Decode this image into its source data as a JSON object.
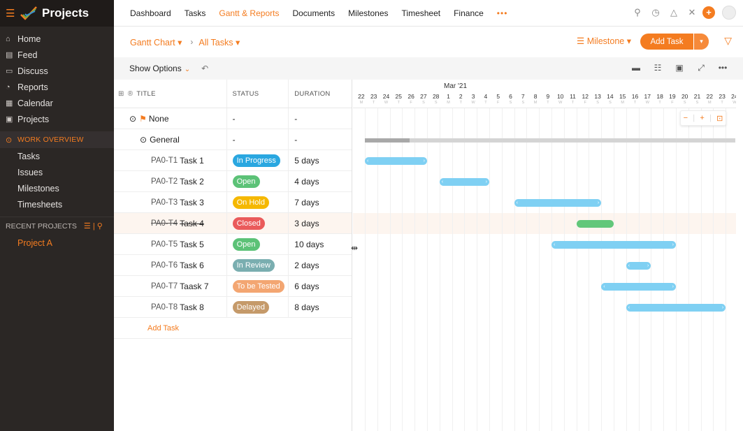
{
  "sidebar": {
    "brand": "Projects",
    "nav": [
      {
        "label": "Home",
        "icon": "home-icon"
      },
      {
        "label": "Feed",
        "icon": "feed-icon"
      },
      {
        "label": "Discuss",
        "icon": "discuss-icon"
      },
      {
        "label": "Reports",
        "icon": "reports-icon"
      },
      {
        "label": "Calendar",
        "icon": "calendar-icon"
      },
      {
        "label": "Projects",
        "icon": "projects-icon"
      }
    ],
    "work_overview": "WORK OVERVIEW",
    "work_items": [
      "Tasks",
      "Issues",
      "Milestones",
      "Timesheets"
    ],
    "recent_projects": "RECENT PROJECTS",
    "recent_items": [
      "Project A"
    ]
  },
  "topbar": {
    "tabs": [
      "Dashboard",
      "Tasks",
      "Gantt & Reports",
      "Documents",
      "Milestones",
      "Timesheet",
      "Finance"
    ],
    "active_tab": "Gantt & Reports",
    "more": "•••"
  },
  "subheader": {
    "view": "Gantt Chart",
    "filter": "All Tasks",
    "milestone": "Milestone",
    "add_task": "Add Task"
  },
  "toolbar": {
    "show_options": "Show Options"
  },
  "grid": {
    "columns": {
      "title": "TITLE",
      "status": "STATUS",
      "duration": "DURATION"
    },
    "groups": {
      "none": "None",
      "general": "General",
      "dash": "-"
    },
    "tasks": [
      {
        "id": "PA0-T1",
        "name": "Task 1",
        "status": "In Progress",
        "status_color": "#2aa7e0",
        "duration": "5 days"
      },
      {
        "id": "PA0-T2",
        "name": "Task 2",
        "status": "Open",
        "status_color": "#5cc277",
        "duration": "4 days"
      },
      {
        "id": "PA0-T3",
        "name": "Task 3",
        "status": "On Hold",
        "status_color": "#f5b800",
        "duration": "7 days"
      },
      {
        "id": "PA0-T4",
        "name": "Task 4",
        "status": "Closed",
        "status_color": "#ea5b5b",
        "duration": "3 days",
        "closed": true
      },
      {
        "id": "PA0-T5",
        "name": "Task 5",
        "status": "Open",
        "status_color": "#5cc277",
        "duration": "10 days"
      },
      {
        "id": "PA0-T6",
        "name": "Task 6",
        "status": "In Review",
        "status_color": "#7aaeb0",
        "duration": "2 days"
      },
      {
        "id": "PA0-T7",
        "name": "Taask 7",
        "status": "To be Tested",
        "status_color": "#f3a672",
        "duration": "6 days"
      },
      {
        "id": "PA0-T8",
        "name": "Task 8",
        "status": "Delayed",
        "status_color": "#c59a6a",
        "duration": "8 days"
      }
    ],
    "add_task": "Add Task"
  },
  "gantt": {
    "month": "Mar '21",
    "days": [
      "22",
      "23",
      "24",
      "25",
      "26",
      "27",
      "28",
      "1",
      "2",
      "3",
      "4",
      "5",
      "6",
      "7",
      "8",
      "9",
      "10",
      "11",
      "12",
      "13",
      "14",
      "15",
      "16",
      "17",
      "18",
      "19",
      "20",
      "21",
      "22",
      "23",
      "24"
    ],
    "weekdays": [
      "M",
      "T",
      "W",
      "T",
      "F",
      "S",
      "S",
      "M",
      "T",
      "W",
      "T",
      "F",
      "S",
      "S",
      "M",
      "T",
      "W",
      "T",
      "F",
      "S",
      "S",
      "M",
      "T",
      "W",
      "T",
      "F",
      "S",
      "S",
      "M",
      "T",
      "W"
    ],
    "group_span": {
      "start": 1,
      "end": 30,
      "progress": 0.12
    },
    "bars": [
      {
        "start": 1,
        "days": 5,
        "color": "#7fd0f3"
      },
      {
        "start": 7,
        "days": 4,
        "color": "#7fd0f3"
      },
      {
        "start": 13,
        "days": 7,
        "color": "#7fd0f3"
      },
      {
        "start": 18,
        "days": 3,
        "color": "#62c77a"
      },
      {
        "start": 16,
        "days": 10,
        "color": "#7fd0f3"
      },
      {
        "start": 22,
        "days": 2,
        "color": "#7fd0f3"
      },
      {
        "start": 20,
        "days": 6,
        "color": "#7fd0f3"
      },
      {
        "start": 22,
        "days": 8,
        "color": "#7fd0f3"
      }
    ],
    "today_index": 30,
    "zoom_out": "−",
    "zoom_in": "+"
  }
}
